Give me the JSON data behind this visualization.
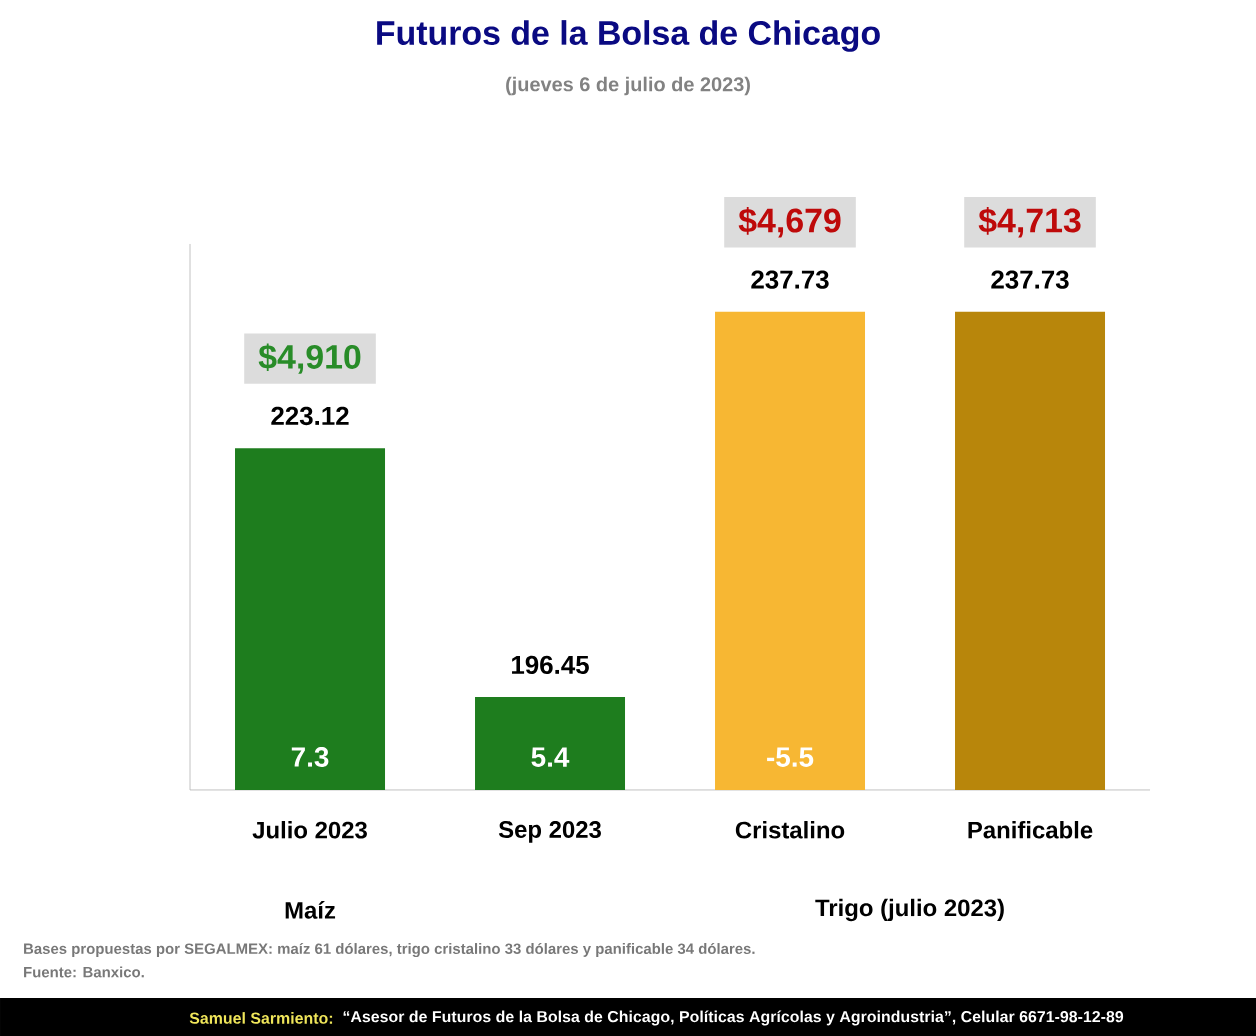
{
  "chart_data": {
    "type": "bar",
    "title": "Futuros de la Bolsa de Chicago",
    "subtitle": "(jueves 6 de julio de 2023)",
    "categories": [
      "Julio 2023",
      "Sep 2023",
      "Cristalino",
      "Panificable"
    ],
    "values": [
      223.12,
      196.45,
      237.73,
      237.73
    ],
    "colors": [
      "#1e7d1e",
      "#1e7d1e",
      "#f7b733",
      "#b8860b"
    ],
    "ylim": [
      186.5,
      245
    ],
    "tick_labels": "x",
    "data_labels": true,
    "annotations": [
      "$4,910",
      "$4,679",
      "$4,713",
      "7.3",
      "5.4",
      "-5.5",
      "Maíz",
      "Trigo (julio 2023)",
      "Bases propuestas por SEGALMEX: maíz 61 dólares, trigo cristalino 33 dólares y panificable 34 dólares.",
      "Fuente: Banxico.",
      "Samuel Sarmiento:",
      "“Asesor de Futuros de la Bolsa de Chicago, Políticas Agrícolas y Agroindustria”, Celular 6671-98-12-89"
    ]
  }
}
